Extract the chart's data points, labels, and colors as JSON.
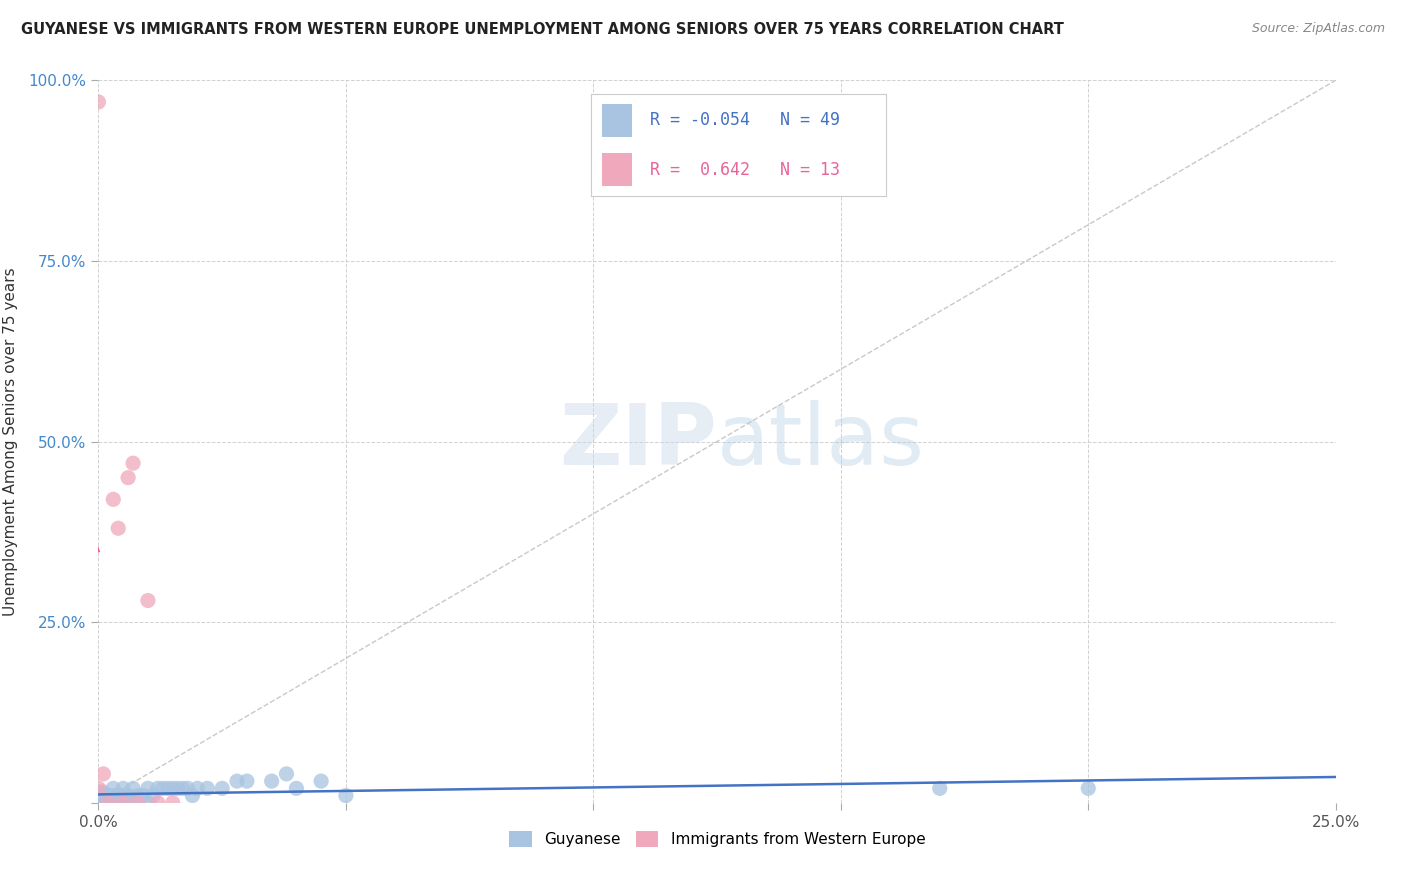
{
  "title": "GUYANESE VS IMMIGRANTS FROM WESTERN EUROPE UNEMPLOYMENT AMONG SENIORS OVER 75 YEARS CORRELATION CHART",
  "source": "Source: ZipAtlas.com",
  "ylabel": "Unemployment Among Seniors over 75 years",
  "xlim": [
    0,
    0.25
  ],
  "ylim": [
    0,
    1.0
  ],
  "xticks": [
    0.0,
    0.05,
    0.1,
    0.15,
    0.2,
    0.25
  ],
  "yticks": [
    0.0,
    0.25,
    0.5,
    0.75,
    1.0
  ],
  "r_guyanese": -0.054,
  "n_guyanese": 49,
  "r_western_europe": 0.642,
  "n_western_europe": 13,
  "guyanese_color": "#a8c4e0",
  "western_europe_color": "#f0a8bc",
  "guyanese_line_color": "#4472c4",
  "western_europe_line_color": "#e8649a",
  "background_color": "#ffffff",
  "guyanese_x": [
    0.0,
    0.0,
    0.0,
    0.0,
    0.0,
    0.0,
    0.001,
    0.001,
    0.001,
    0.001,
    0.002,
    0.002,
    0.003,
    0.003,
    0.003,
    0.004,
    0.004,
    0.005,
    0.005,
    0.005,
    0.006,
    0.006,
    0.007,
    0.007,
    0.008,
    0.009,
    0.01,
    0.01,
    0.011,
    0.012,
    0.013,
    0.014,
    0.015,
    0.016,
    0.017,
    0.018,
    0.019,
    0.02,
    0.022,
    0.025,
    0.028,
    0.03,
    0.035,
    0.038,
    0.04,
    0.045,
    0.05,
    0.17,
    0.2
  ],
  "guyanese_y": [
    0.0,
    0.0,
    0.0,
    0.005,
    0.01,
    0.015,
    0.0,
    0.005,
    0.01,
    0.015,
    0.0,
    0.01,
    0.0,
    0.01,
    0.02,
    0.0,
    0.01,
    0.0,
    0.01,
    0.02,
    0.0,
    0.01,
    0.0,
    0.02,
    0.01,
    0.01,
    0.0,
    0.02,
    0.01,
    0.02,
    0.02,
    0.02,
    0.02,
    0.02,
    0.02,
    0.02,
    0.01,
    0.02,
    0.02,
    0.02,
    0.03,
    0.03,
    0.03,
    0.04,
    0.02,
    0.03,
    0.01,
    0.02,
    0.02
  ],
  "western_europe_x": [
    0.0,
    0.0,
    0.001,
    0.002,
    0.003,
    0.004,
    0.005,
    0.006,
    0.007,
    0.008,
    0.01,
    0.012,
    0.015
  ],
  "western_europe_y": [
    0.97,
    0.02,
    0.04,
    0.0,
    0.42,
    0.38,
    0.0,
    0.45,
    0.47,
    0.0,
    0.28,
    0.0,
    0.0
  ]
}
